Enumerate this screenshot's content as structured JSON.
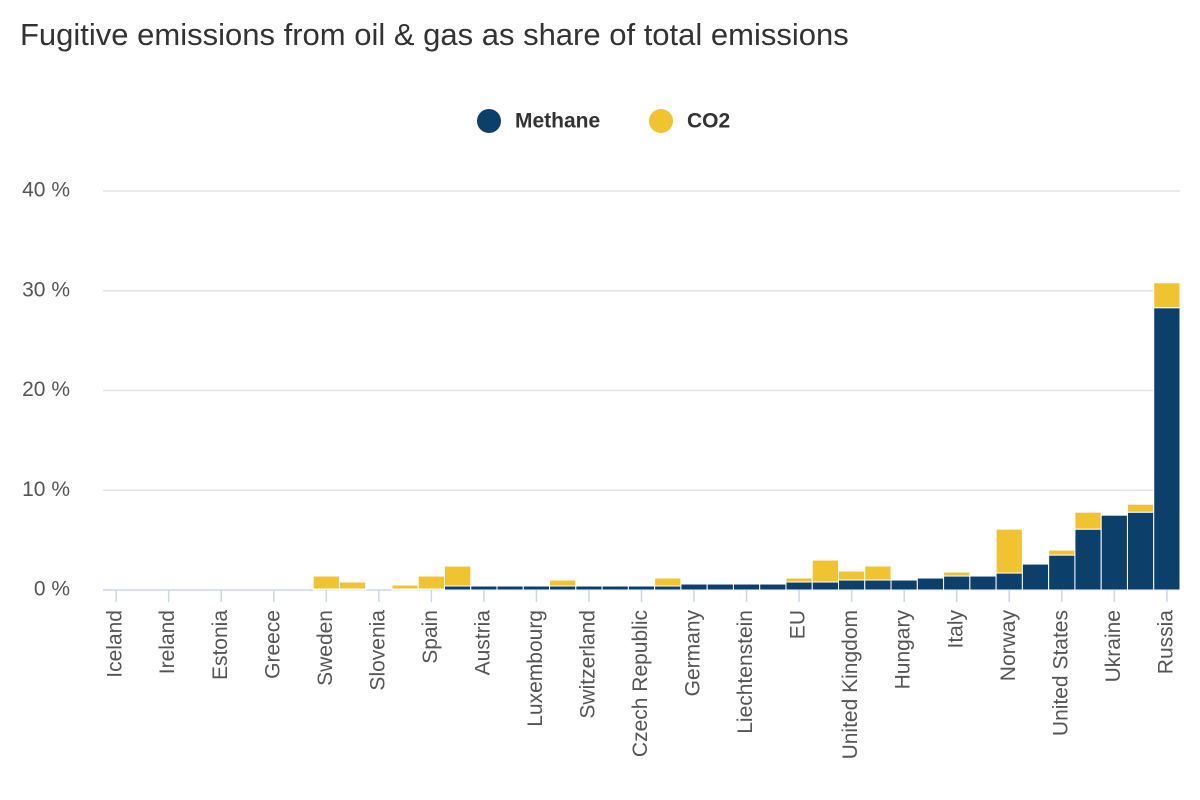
{
  "chart_data": {
    "type": "stacked_bar",
    "title": "Fugitive emissions from oil & gas as share of total emissions",
    "categories": [
      "Iceland",
      null,
      "Ireland",
      null,
      "Estonia",
      null,
      "Greece",
      null,
      "Sweden",
      null,
      "Slovenia",
      null,
      "Spain",
      null,
      "Austria",
      null,
      "Luxembourg",
      null,
      "Switzerland",
      null,
      "Czech Republic",
      null,
      "Germany",
      null,
      "Liechtenstein",
      null,
      "EU",
      null,
      "United Kingdom",
      null,
      "Hungary",
      null,
      "Italy",
      null,
      "Norway",
      null,
      "United States",
      null,
      "Ukraine",
      null,
      "Russia"
    ],
    "series": [
      {
        "name": "Methane",
        "color": "#0d3f6b",
        "values": [
          0,
          0,
          0,
          0,
          0,
          0,
          0,
          0,
          0.1,
          0.1,
          0,
          0.1,
          0.1,
          0.4,
          0.4,
          0.4,
          0.4,
          0.4,
          0.4,
          0.4,
          0.4,
          0.4,
          0.6,
          0.6,
          0.6,
          0.6,
          0.8,
          0.8,
          1.0,
          1.0,
          1.0,
          1.2,
          1.4,
          1.4,
          1.7,
          2.6,
          3.5,
          6.1,
          7.5,
          7.8,
          28.3
        ]
      },
      {
        "name": "CO2",
        "color": "#f0c330",
        "values": [
          0,
          0,
          0,
          0,
          0,
          0,
          0,
          0,
          1.3,
          0.7,
          0,
          0.4,
          1.3,
          2.0,
          0,
          0,
          0,
          0.6,
          0,
          0,
          0,
          0.8,
          0,
          0,
          0,
          0,
          0.4,
          2.2,
          0.9,
          1.4,
          0,
          0,
          0.4,
          0,
          4.4,
          0,
          0.5,
          1.7,
          0,
          0.8,
          2.5
        ]
      }
    ],
    "ylim": [
      0,
      40
    ],
    "yticks": [
      {
        "value": 0,
        "label": "0 %"
      },
      {
        "value": 10,
        "label": "10 %"
      },
      {
        "value": 20,
        "label": "20 %"
      },
      {
        "value": 30,
        "label": "30 %"
      },
      {
        "value": 40,
        "label": "40 %"
      }
    ],
    "grid": true,
    "legend": "top"
  }
}
